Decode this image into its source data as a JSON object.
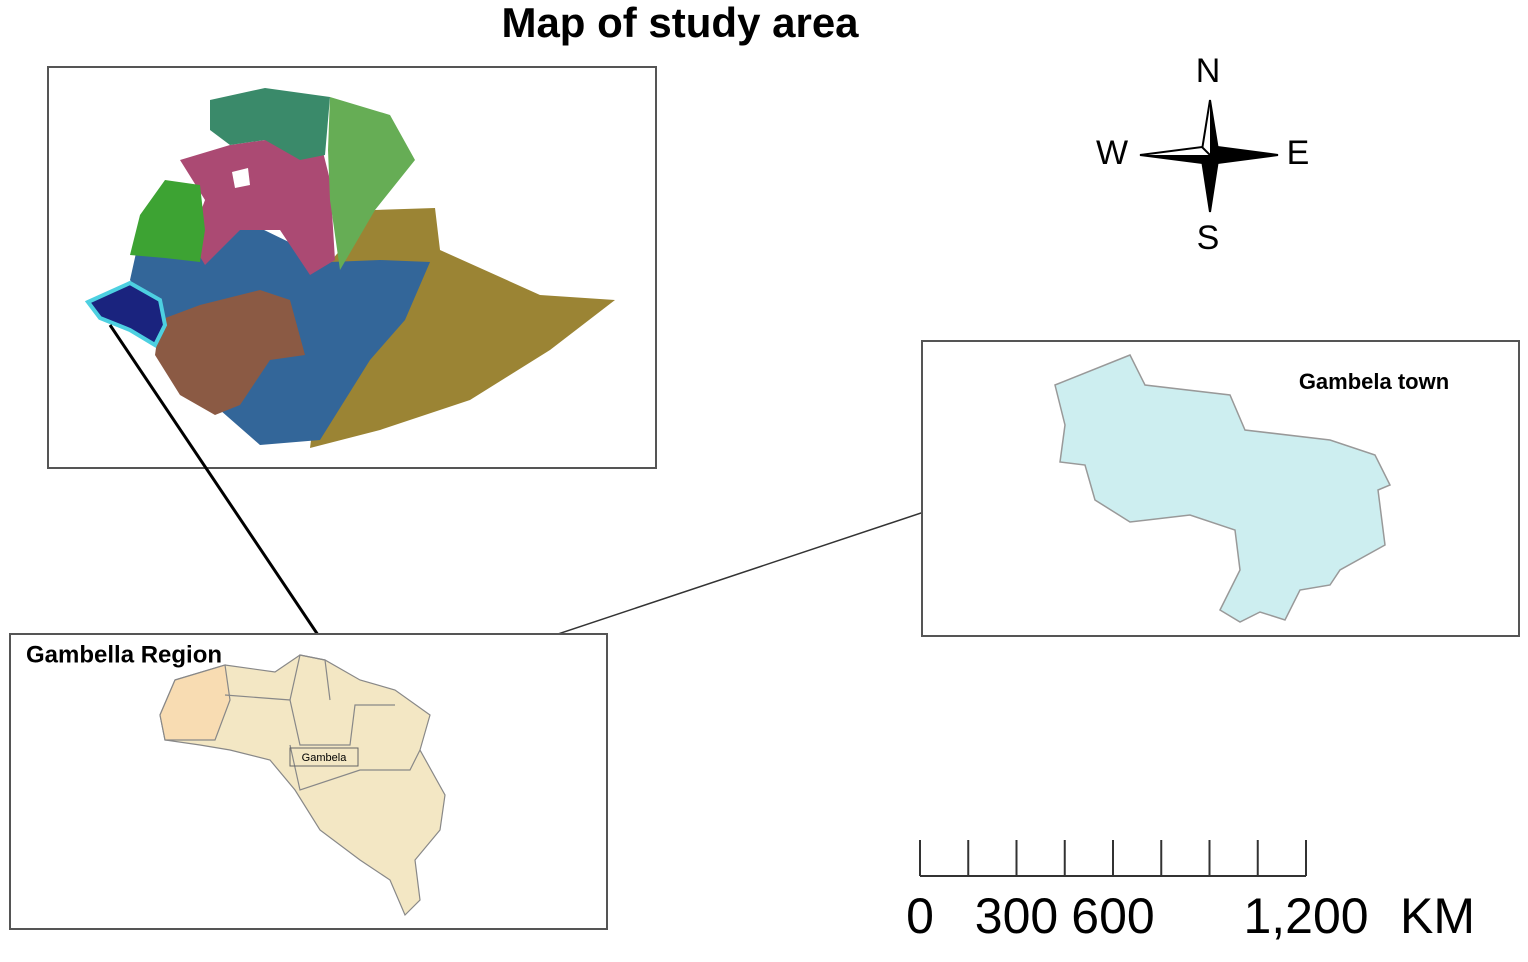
{
  "title": "Map of study area",
  "compass": {
    "north": "N",
    "west": "W",
    "east": "E",
    "south": "S"
  },
  "ethiopia_inset": {},
  "gambella_inset": {
    "title": "Gambella Region",
    "town_label": "Gambela"
  },
  "town_inset": {
    "title": "Gambela town"
  },
  "scale_bar": {
    "lim": [
      0,
      1200
    ],
    "ticks": [
      0,
      150,
      300,
      450,
      600,
      750,
      900,
      1050,
      1200
    ],
    "labels": [
      0,
      300,
      600,
      {
        "value": 1200,
        "label": "1,200"
      }
    ],
    "unit": "KM"
  }
}
